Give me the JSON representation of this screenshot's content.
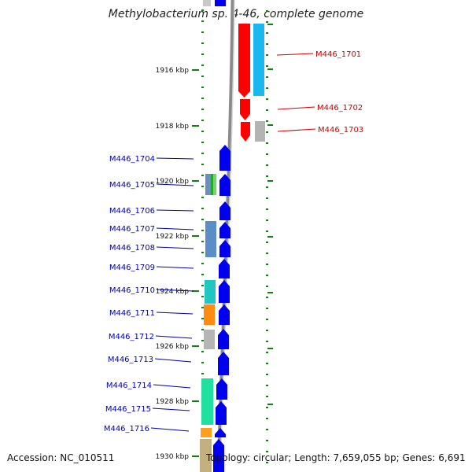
{
  "title": "Methylobacterium sp. 4-46, complete genome",
  "footer": {
    "accession": "Accession: NC_010511",
    "summary": "Topology: circular; Length: 7,659,055 bp; Genes: 6,691"
  },
  "scale_labels": [
    "1916 kbp",
    "1918 kbp",
    "1920 kbp",
    "1922 kbp",
    "1924 kbp",
    "1926 kbp",
    "1928 kbp",
    "1930 kbp"
  ],
  "colors": {
    "forward_gene": "#0000ee",
    "reverse_gene": "#ff0000",
    "forward_label": "#0000aa",
    "reverse_label": "#cc0000",
    "tick": "#1a7a1a"
  },
  "reverse_strand_genes": [
    {
      "label": "M446_1701"
    },
    {
      "label": "M446_1702"
    },
    {
      "label": "M446_1703"
    }
  ],
  "forward_strand_genes": [
    {
      "label": "M446_1704"
    },
    {
      "label": "M446_1705"
    },
    {
      "label": "M446_1706"
    },
    {
      "label": "M446_1707"
    },
    {
      "label": "M446_1708"
    },
    {
      "label": "M446_1709"
    },
    {
      "label": "M446_1710"
    },
    {
      "label": "M446_1711"
    },
    {
      "label": "M446_1712"
    },
    {
      "label": "M446_1713"
    },
    {
      "label": "M446_1714"
    },
    {
      "label": "M446_1715"
    },
    {
      "label": "M446_1716"
    }
  ]
}
